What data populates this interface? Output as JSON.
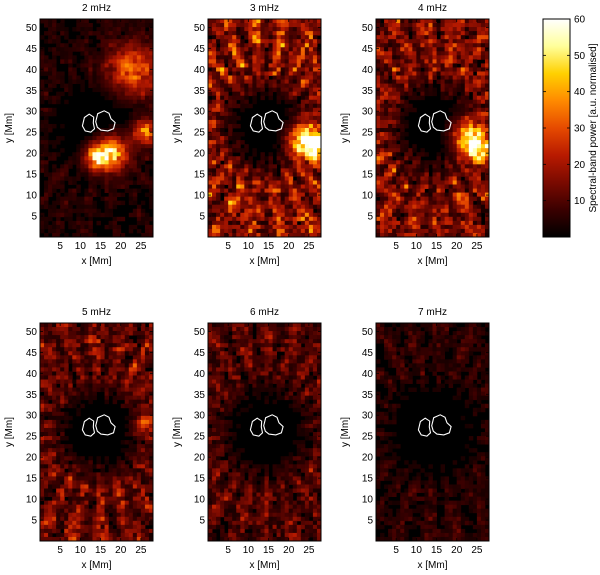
{
  "figure": {
    "colorbar": {
      "label": "Spectral-band power [a.u. normalised]",
      "range": [
        0,
        60
      ],
      "ticks": [
        10,
        20,
        30,
        40,
        50,
        60
      ],
      "colormap": [
        "#000000",
        "#3a0000",
        "#7a0a00",
        "#b81a00",
        "#e64a00",
        "#ff8a00",
        "#ffd000",
        "#ffff9a",
        "#ffffff"
      ]
    },
    "contour_color": "#ffffff"
  },
  "chart_data": [
    {
      "type": "heatmap",
      "title": "2 mHz",
      "xlabel": "x [Mm]",
      "ylabel": "y [Mm]",
      "xlim": [
        0,
        28
      ],
      "ylim": [
        0,
        52
      ],
      "xticks": [
        5,
        10,
        15,
        20,
        25
      ],
      "yticks": [
        5,
        10,
        15,
        20,
        25,
        30,
        35,
        40,
        45,
        50
      ]
    },
    {
      "type": "heatmap",
      "title": "3 mHz",
      "xlabel": "x [Mm]",
      "ylabel": "y [Mm]",
      "xlim": [
        0,
        28
      ],
      "ylim": [
        0,
        52
      ],
      "xticks": [
        5,
        10,
        15,
        20,
        25
      ],
      "yticks": [
        5,
        10,
        15,
        20,
        25,
        30,
        35,
        40,
        45,
        50
      ]
    },
    {
      "type": "heatmap",
      "title": "4 mHz",
      "xlabel": "x [Mm]",
      "ylabel": "y [Mm]",
      "xlim": [
        0,
        28
      ],
      "ylim": [
        0,
        52
      ],
      "xticks": [
        5,
        10,
        15,
        20,
        25
      ],
      "yticks": [
        5,
        10,
        15,
        20,
        25,
        30,
        35,
        40,
        45,
        50
      ]
    },
    {
      "type": "heatmap",
      "title": "5 mHz",
      "xlabel": "x [Mm]",
      "ylabel": "y [Mm]",
      "xlim": [
        0,
        28
      ],
      "ylim": [
        0,
        52
      ],
      "xticks": [
        5,
        10,
        15,
        20,
        25
      ],
      "yticks": [
        5,
        10,
        15,
        20,
        25,
        30,
        35,
        40,
        45,
        50
      ]
    },
    {
      "type": "heatmap",
      "title": "6 mHz",
      "xlabel": "x [Mm]",
      "ylabel": "y [Mm]",
      "xlim": [
        0,
        28
      ],
      "ylim": [
        0,
        52
      ],
      "xticks": [
        5,
        10,
        15,
        20,
        25
      ],
      "yticks": [
        5,
        10,
        15,
        20,
        25,
        30,
        35,
        40,
        45,
        50
      ]
    },
    {
      "type": "heatmap",
      "title": "7 mHz",
      "xlabel": "x [Mm]",
      "ylabel": "y [Mm]",
      "xlim": [
        0,
        28
      ],
      "ylim": [
        0,
        52
      ],
      "xticks": [
        5,
        10,
        15,
        20,
        25
      ],
      "yticks": [
        5,
        10,
        15,
        20,
        25,
        30,
        35,
        40,
        45,
        50
      ]
    }
  ]
}
